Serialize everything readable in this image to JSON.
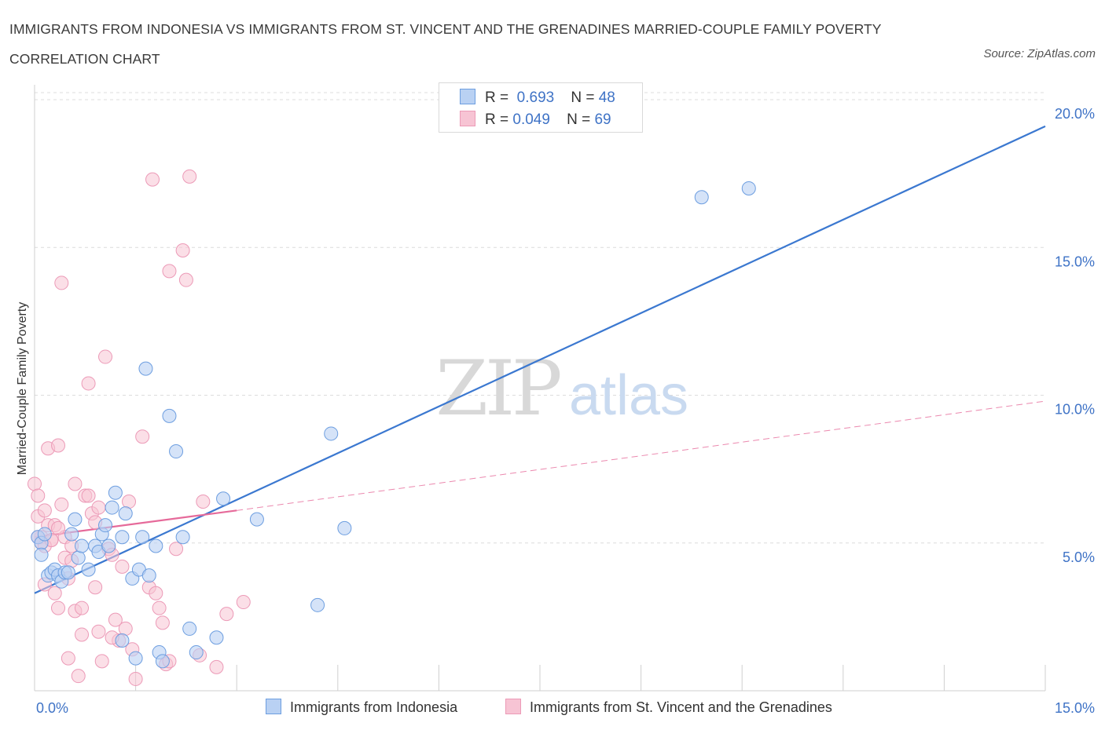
{
  "title": "IMMIGRANTS FROM INDONESIA VS IMMIGRANTS FROM ST. VINCENT AND THE GRENADINES MARRIED-COUPLE FAMILY POVERTY CORRELATION CHART",
  "source": "Source: ZipAtlas.com",
  "watermark": {
    "zip": "ZIP",
    "atlas": "atlas"
  },
  "colors": {
    "blue": "#3b78d0",
    "blue_fill": "#b9d1f3",
    "pink": "#e66a9a",
    "pink_fill": "#f7c4d4",
    "tick_label": "#3f73c6",
    "grid": "#dcdcdc"
  },
  "legend_top": {
    "rows": [
      {
        "r_label": "R =",
        "r_value": "0.693",
        "n_label": "N =",
        "n_value": "48"
      },
      {
        "r_label": "R =",
        "r_value": "0.049",
        "n_label": "N =",
        "n_value": "69"
      }
    ]
  },
  "legend_bottom": {
    "items": [
      "Immigrants from Indonesia",
      "Immigrants from St. Vincent and the Grenadines"
    ]
  },
  "chart_data": {
    "type": "scatter",
    "title": "IMMIGRANTS FROM INDONESIA VS IMMIGRANTS FROM ST. VINCENT AND THE GRENADINES MARRIED-COUPLE FAMILY POVERTY CORRELATION CHART",
    "xlabel": "",
    "ylabel": "Married-Couple Family Poverty",
    "xlim": [
      0,
      15
    ],
    "ylim": [
      0,
      20
    ],
    "x_tick_labels": [
      "0.0%",
      "15.0%"
    ],
    "y_ticks": [
      5,
      10,
      15,
      20
    ],
    "y_tick_labels": [
      "5.0%",
      "10.0%",
      "15.0%",
      "20.0%"
    ],
    "grid": true,
    "series": [
      {
        "name": "Immigrants from Indonesia",
        "color": "#3b78d0",
        "r": 0.693,
        "n": 48,
        "trend": {
          "x": [
            0.0,
            15.0
          ],
          "y": [
            3.3,
            19.1
          ],
          "style": "solid"
        },
        "points": [
          [
            0.05,
            5.2
          ],
          [
            0.1,
            5.0
          ],
          [
            0.15,
            5.3
          ],
          [
            0.2,
            3.9
          ],
          [
            0.25,
            4.0
          ],
          [
            0.3,
            4.1
          ],
          [
            0.35,
            3.9
          ],
          [
            0.4,
            3.7
          ],
          [
            0.45,
            4.0
          ],
          [
            0.5,
            4.0
          ],
          [
            0.55,
            5.3
          ],
          [
            0.6,
            5.8
          ],
          [
            0.65,
            4.5
          ],
          [
            0.7,
            4.9
          ],
          [
            0.8,
            4.1
          ],
          [
            0.9,
            4.9
          ],
          [
            0.95,
            4.7
          ],
          [
            1.0,
            5.3
          ],
          [
            1.05,
            5.6
          ],
          [
            1.1,
            4.9
          ],
          [
            1.15,
            6.2
          ],
          [
            1.2,
            6.7
          ],
          [
            1.3,
            5.2
          ],
          [
            1.3,
            1.7
          ],
          [
            1.35,
            6.0
          ],
          [
            1.45,
            3.8
          ],
          [
            1.5,
            1.1
          ],
          [
            1.55,
            4.1
          ],
          [
            1.6,
            5.2
          ],
          [
            1.7,
            3.9
          ],
          [
            1.65,
            10.9
          ],
          [
            1.8,
            4.9
          ],
          [
            1.85,
            1.3
          ],
          [
            1.9,
            1.0
          ],
          [
            2.0,
            9.3
          ],
          [
            2.1,
            8.1
          ],
          [
            2.2,
            5.2
          ],
          [
            2.3,
            2.1
          ],
          [
            2.4,
            1.3
          ],
          [
            2.7,
            1.8
          ],
          [
            2.8,
            6.5
          ],
          [
            3.3,
            5.8
          ],
          [
            4.2,
            2.9
          ],
          [
            4.4,
            8.7
          ],
          [
            4.6,
            5.5
          ],
          [
            9.9,
            16.7
          ],
          [
            10.6,
            17.0
          ],
          [
            0.1,
            4.6
          ]
        ]
      },
      {
        "name": "Immigrants from St. Vincent and the Grenadines",
        "color": "#e66a9a",
        "r": 0.049,
        "n": 69,
        "trend": {
          "x_solid": [
            0.0,
            3.0
          ],
          "y_solid": [
            5.2,
            6.1
          ],
          "x_dashed": [
            3.0,
            15.0
          ],
          "y_dashed": [
            6.1,
            9.8
          ]
        },
        "points": [
          [
            0.0,
            7.0
          ],
          [
            0.05,
            6.6
          ],
          [
            0.05,
            5.9
          ],
          [
            0.1,
            5.2
          ],
          [
            0.1,
            5.0
          ],
          [
            0.15,
            6.1
          ],
          [
            0.15,
            3.6
          ],
          [
            0.2,
            5.6
          ],
          [
            0.2,
            8.2
          ],
          [
            0.25,
            5.1
          ],
          [
            0.3,
            5.6
          ],
          [
            0.3,
            3.3
          ],
          [
            0.35,
            8.3
          ],
          [
            0.35,
            2.8
          ],
          [
            0.4,
            6.3
          ],
          [
            0.4,
            13.8
          ],
          [
            0.45,
            5.2
          ],
          [
            0.45,
            4.5
          ],
          [
            0.5,
            3.8
          ],
          [
            0.5,
            1.1
          ],
          [
            0.55,
            4.9
          ],
          [
            0.6,
            7.0
          ],
          [
            0.6,
            2.7
          ],
          [
            0.65,
            0.5
          ],
          [
            0.7,
            2.8
          ],
          [
            0.7,
            1.9
          ],
          [
            0.75,
            6.6
          ],
          [
            0.8,
            6.6
          ],
          [
            0.8,
            10.4
          ],
          [
            0.85,
            6.0
          ],
          [
            0.9,
            5.7
          ],
          [
            0.9,
            3.5
          ],
          [
            0.95,
            2.0
          ],
          [
            1.0,
            1.0
          ],
          [
            1.05,
            11.3
          ],
          [
            1.1,
            4.8
          ],
          [
            1.15,
            4.6
          ],
          [
            1.2,
            2.4
          ],
          [
            1.25,
            1.7
          ],
          [
            1.3,
            4.2
          ],
          [
            1.35,
            2.1
          ],
          [
            1.4,
            6.4
          ],
          [
            1.45,
            1.4
          ],
          [
            1.5,
            0.4
          ],
          [
            1.6,
            8.6
          ],
          [
            1.7,
            3.5
          ],
          [
            1.75,
            17.3
          ],
          [
            1.8,
            3.3
          ],
          [
            1.85,
            2.8
          ],
          [
            1.9,
            2.3
          ],
          [
            1.95,
            0.9
          ],
          [
            2.0,
            14.2
          ],
          [
            2.1,
            4.8
          ],
          [
            2.2,
            14.9
          ],
          [
            2.25,
            13.9
          ],
          [
            2.3,
            17.4
          ],
          [
            2.45,
            1.2
          ],
          [
            2.5,
            6.4
          ],
          [
            2.7,
            0.8
          ],
          [
            2.85,
            2.6
          ],
          [
            3.1,
            3.0
          ],
          [
            0.05,
            5.2
          ],
          [
            0.15,
            4.9
          ],
          [
            0.25,
            5.1
          ],
          [
            0.35,
            5.5
          ],
          [
            0.55,
            4.4
          ],
          [
            0.95,
            6.2
          ],
          [
            1.15,
            1.8
          ],
          [
            2.0,
            1.0
          ]
        ]
      }
    ]
  }
}
